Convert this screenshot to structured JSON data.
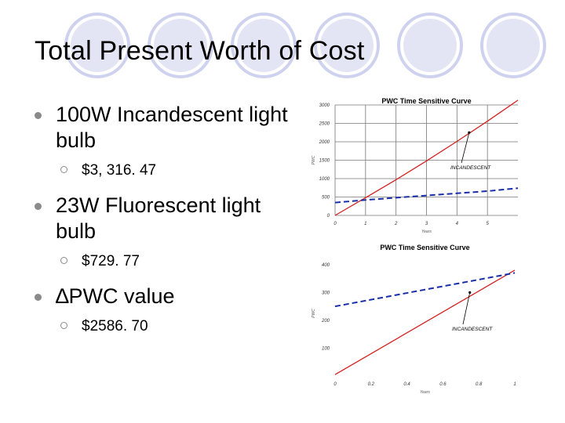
{
  "slide": {
    "title": "Total Present Worth of Cost",
    "bullets": [
      {
        "text": "100W Incandescent light bulb",
        "sub": "$3, 316. 47"
      },
      {
        "text": "23W Fluorescent light bulb",
        "sub": "$729. 77"
      },
      {
        "text": "∆PWC value",
        "sub": "$2586. 70"
      }
    ],
    "colors": {
      "incandescent": "#d42020",
      "fluorescent": "#1a2ea8",
      "grid": "#777777",
      "bullet": "#8a8a8a"
    }
  },
  "chart_data": [
    {
      "type": "line",
      "title": "PWC Time Sensitive Curve",
      "xlabel": "Years",
      "ylabel": "PWC",
      "xlim": [
        0,
        6
      ],
      "ylim": [
        0,
        3000
      ],
      "xticks": [
        0,
        1,
        2,
        3,
        4,
        5
      ],
      "yticks": [
        0,
        500,
        1000,
        1500,
        2000,
        2500,
        3000
      ],
      "grid": true,
      "annotation": "INCANDESCENT",
      "series": [
        {
          "name": "INCANDESCENT",
          "x": [
            0,
            1,
            2,
            3,
            4,
            5,
            6
          ],
          "y": [
            0,
            480,
            970,
            1480,
            2010,
            2560,
            3130
          ],
          "style": "solid"
        },
        {
          "name": "",
          "x": [
            0,
            1,
            2,
            3,
            4,
            5,
            6
          ],
          "y": [
            350,
            420,
            480,
            540,
            600,
            660,
            740
          ],
          "style": "dashed"
        }
      ]
    },
    {
      "type": "line",
      "title": "PWC Time Sensitive Curve",
      "xlabel": "Years",
      "ylabel": "PWC",
      "xlim": [
        0,
        1
      ],
      "ylim": [
        0,
        450
      ],
      "xticks": [
        0,
        0.2,
        0.4,
        0.6,
        0.8,
        1
      ],
      "yticks": [
        100,
        200,
        300,
        400
      ],
      "grid": false,
      "annotation": "INCANDESCENT",
      "series": [
        {
          "name": "INCANDESCENT",
          "x": [
            0,
            1
          ],
          "y": [
            5,
            380
          ],
          "style": "solid"
        },
        {
          "name": "",
          "x": [
            0,
            1
          ],
          "y": [
            250,
            370
          ],
          "style": "dashed"
        }
      ]
    }
  ]
}
